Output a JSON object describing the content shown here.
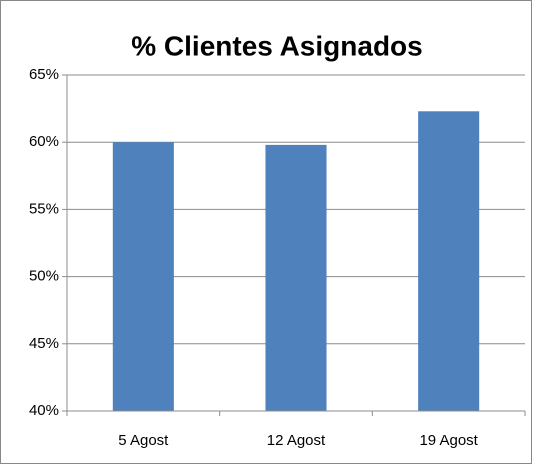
{
  "chart_data": {
    "type": "bar",
    "title": "% Clientes Asignados",
    "categories": [
      "5 Agost",
      "12 Agost",
      "19 Agost"
    ],
    "values": [
      60.0,
      59.8,
      62.3
    ],
    "color": "#4f81bd",
    "ylim": [
      40,
      65
    ],
    "yticks": [
      {
        "value": 40,
        "label": "40%"
      },
      {
        "value": 45,
        "label": "45%"
      },
      {
        "value": 50,
        "label": "50%"
      },
      {
        "value": 55,
        "label": "55%"
      },
      {
        "value": 60,
        "label": "60%"
      },
      {
        "value": 65,
        "label": "65%"
      }
    ],
    "grid": true
  }
}
